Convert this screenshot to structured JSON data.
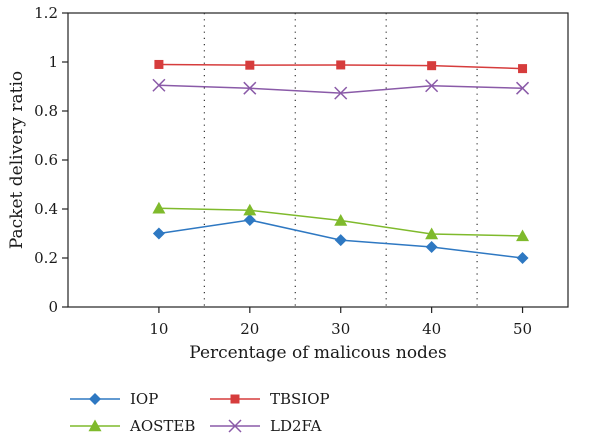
{
  "chart_data": {
    "type": "line",
    "title": "",
    "xlabel": "Percentage of malicous nodes",
    "ylabel": "Packet delivery ratio",
    "x": [
      10,
      20,
      30,
      40,
      50
    ],
    "x_tick_labels": [
      "10",
      "20",
      "30",
      "40",
      "50"
    ],
    "y_tick_labels": [
      "0",
      "0.2",
      "0.4",
      "0.6",
      "0.8",
      "1",
      "1.2"
    ],
    "xlim": [
      0,
      55
    ],
    "ylim": [
      0,
      1.2
    ],
    "vertical_dotted_lines_at": [
      15,
      25,
      35,
      45
    ],
    "legend_position": "bottom",
    "series": [
      {
        "name": "IOP",
        "values": [
          0.3,
          0.355,
          0.273,
          0.245,
          0.2
        ],
        "color": "#2e78c2",
        "marker": "diamond"
      },
      {
        "name": "TBSIOP",
        "values": [
          0.99,
          0.987,
          0.988,
          0.985,
          0.973
        ],
        "color": "#d63c3c",
        "marker": "square"
      },
      {
        "name": "AOSTEB",
        "values": [
          0.403,
          0.395,
          0.353,
          0.298,
          0.29
        ],
        "color": "#7fba2c",
        "marker": "triangle"
      },
      {
        "name": "LD2FA",
        "values": [
          0.905,
          0.893,
          0.873,
          0.903,
          0.893
        ],
        "color": "#8a5aa8",
        "marker": "x"
      }
    ]
  }
}
